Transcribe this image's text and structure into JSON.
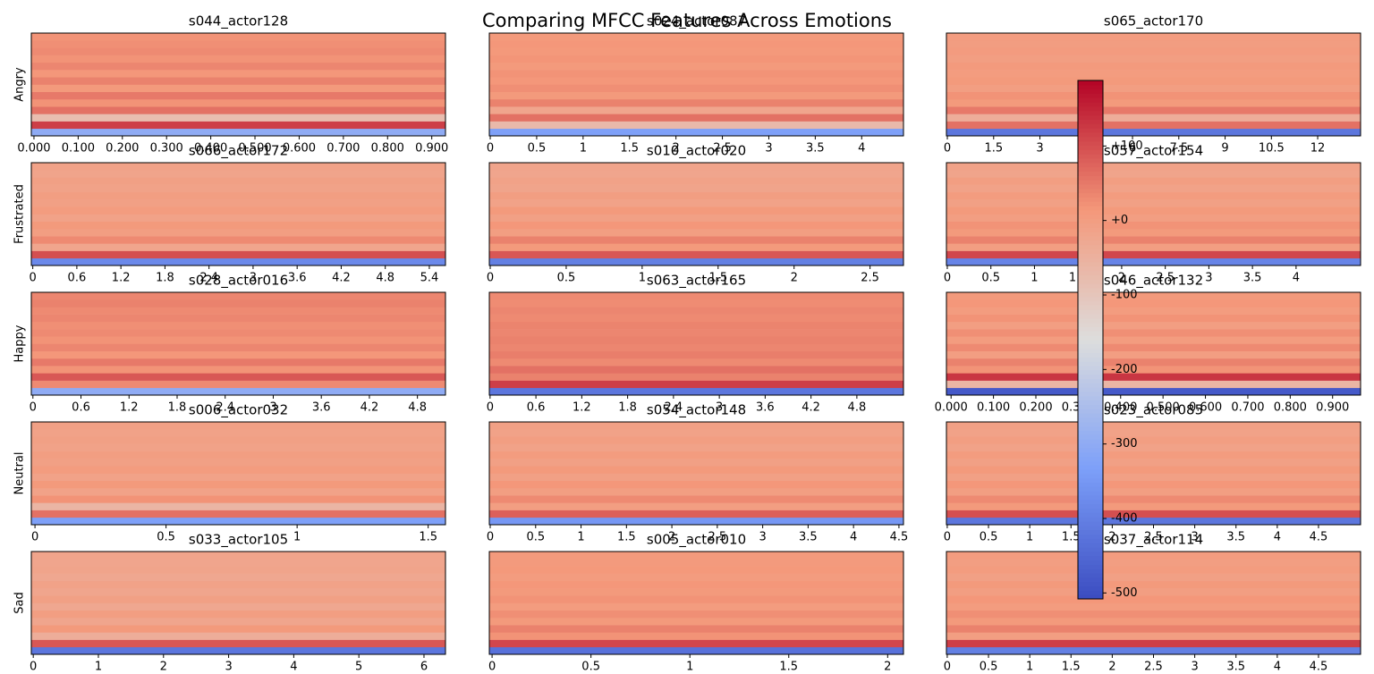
{
  "title": "Comparing MFCC Features Across Emotions",
  "row_labels": [
    "Angry",
    "Frustrated",
    "Happy",
    "Neutral",
    "Sad"
  ],
  "cmap": "coolwarm",
  "colorbar": {
    "lim": [
      -508,
      188
    ],
    "ticks": [
      {
        "value": 100,
        "label": "+100"
      },
      {
        "value": 0,
        "label": "+0"
      },
      -100,
      -200,
      -300,
      -400,
      -500
    ]
  },
  "chart_data": [
    {
      "type": "heatmap",
      "title": "s044_actor128",
      "xlim": [
        -0.006,
        0.931
      ],
      "xticks": [
        {
          "value": 0,
          "label": "0.000"
        },
        {
          "value": 0.1,
          "label": "0.100"
        },
        {
          "value": 0.2,
          "label": "0.200"
        },
        {
          "value": 0.3,
          "label": "0.300"
        },
        {
          "value": 0.4,
          "label": "0.400"
        },
        {
          "value": 0.5,
          "label": "0.500"
        },
        {
          "value": 0.6,
          "label": "0.600"
        },
        {
          "value": 0.7,
          "label": "0.700"
        },
        {
          "value": 0.8,
          "label": "0.800"
        },
        {
          "value": 0.9,
          "label": "0.900"
        }
      ],
      "values": [
        -300,
        120,
        -80,
        60,
        20,
        50,
        10,
        40,
        15,
        35,
        20,
        30,
        25,
        20
      ]
    },
    {
      "type": "heatmap",
      "title": "s024_actor087",
      "xlim": [
        -0.01,
        4.45
      ],
      "xticks": [
        0,
        0.5,
        1,
        1.5,
        2,
        2.5,
        3,
        3.5,
        4
      ],
      "values": [
        -330,
        -70,
        60,
        -20,
        40,
        10,
        25,
        15,
        20,
        10,
        18,
        12,
        15,
        10
      ]
    },
    {
      "type": "heatmap",
      "title": "s065_actor170",
      "xlim": [
        -0.03,
        13.39
      ],
      "xticks": [
        0,
        1.5,
        3,
        4.5,
        6,
        7.5,
        9,
        10.5,
        12
      ],
      "values": [
        -420,
        60,
        -40,
        50,
        10,
        20,
        0,
        10,
        5,
        8,
        0,
        6,
        2,
        4
      ]
    },
    {
      "type": "heatmap",
      "title": "s066_actor172",
      "xlim": [
        -0.02,
        5.62
      ],
      "xticks": [
        0,
        0.6,
        1.2,
        1.8,
        2.4,
        3,
        3.6,
        4.2,
        4.8,
        5.4
      ],
      "values": [
        -380,
        100,
        -20,
        30,
        0,
        10,
        -10,
        5,
        -5,
        0,
        -10,
        -5,
        -15,
        -10
      ]
    },
    {
      "type": "heatmap",
      "title": "s010_actor020",
      "xlim": [
        -0.006,
        2.72
      ],
      "xticks": [
        0,
        0.5,
        1,
        1.5,
        2,
        2.5
      ],
      "values": [
        -400,
        90,
        10,
        40,
        0,
        15,
        -5,
        10,
        -10,
        0,
        -15,
        -10,
        -20,
        -15
      ]
    },
    {
      "type": "heatmap",
      "title": "s057_actor154",
      "xlim": [
        -0.01,
        4.74
      ],
      "xticks": [
        0,
        0.5,
        1,
        1.5,
        2,
        2.5,
        3,
        3.5,
        4
      ],
      "values": [
        -390,
        110,
        0,
        40,
        10,
        20,
        0,
        10,
        -5,
        5,
        -10,
        0,
        -15,
        -10
      ]
    },
    {
      "type": "heatmap",
      "title": "s028_actor016",
      "xlim": [
        -0.02,
        5.15
      ],
      "xticks": [
        0,
        0.6,
        1.2,
        1.8,
        2.4,
        3,
        3.6,
        4.2,
        4.8
      ],
      "values": [
        -300,
        30,
        90,
        20,
        50,
        15,
        35,
        20,
        30,
        25,
        35,
        30,
        40,
        35
      ]
    },
    {
      "type": "heatmap",
      "title": "s063_actor165",
      "xlim": [
        -0.01,
        5.41
      ],
      "xticks": [
        0,
        0.6,
        1.2,
        1.8,
        2.4,
        3,
        3.6,
        4.2,
        4.8
      ],
      "values": [
        -420,
        120,
        40,
        60,
        30,
        45,
        35,
        40,
        35,
        38,
        30,
        35,
        28,
        30
      ]
    },
    {
      "type": "heatmap",
      "title": "s046_actor132",
      "xlim": [
        -0.011,
        0.966
      ],
      "xticks": [
        {
          "value": 0,
          "label": "0.000"
        },
        {
          "value": 0.1,
          "label": "0.100"
        },
        {
          "value": 0.2,
          "label": "0.200"
        },
        {
          "value": 0.3,
          "label": "0.300"
        },
        {
          "value": 0.4,
          "label": "0.400"
        },
        {
          "value": 0.5,
          "label": "0.500"
        },
        {
          "value": 0.6,
          "label": "0.600"
        },
        {
          "value": 0.7,
          "label": "0.700"
        },
        {
          "value": 0.8,
          "label": "0.800"
        },
        {
          "value": 0.9,
          "label": "0.900"
        }
      ],
      "values": [
        -480,
        -60,
        130,
        20,
        40,
        0,
        30,
        5,
        25,
        0,
        20,
        5,
        15,
        10
      ]
    },
    {
      "type": "heatmap",
      "title": "s006_actor032",
      "xlim": [
        -0.014,
        1.566
      ],
      "xticks": [
        0,
        0.5,
        1,
        1.5
      ],
      "values": [
        -330,
        60,
        -60,
        20,
        -10,
        10,
        -10,
        5,
        -5,
        0,
        -10,
        -5,
        -10,
        -5
      ]
    },
    {
      "type": "heatmap",
      "title": "s054_actor148",
      "xlim": [
        -0.01,
        4.55
      ],
      "xticks": [
        0,
        0.5,
        1,
        1.5,
        2,
        2.5,
        3,
        3.5,
        4,
        4.5
      ],
      "values": [
        -350,
        80,
        0,
        30,
        0,
        15,
        -5,
        10,
        -5,
        5,
        -10,
        0,
        -10,
        -5
      ]
    },
    {
      "type": "heatmap",
      "title": "s023_actor085",
      "xlim": [
        -0.01,
        5.01
      ],
      "xticks": [
        0,
        0.5,
        1,
        1.5,
        2,
        2.5,
        3,
        3.5,
        4,
        4.5
      ],
      "values": [
        -420,
        100,
        10,
        30,
        0,
        15,
        -5,
        10,
        -5,
        5,
        -10,
        0,
        -10,
        -5
      ]
    },
    {
      "type": "heatmap",
      "title": "s033_actor105",
      "xlim": [
        -0.03,
        6.33
      ],
      "xticks": [
        0,
        1,
        2,
        3,
        4,
        5,
        6
      ],
      "values": [
        -420,
        90,
        -40,
        10,
        -20,
        0,
        -25,
        -5,
        -20,
        -10,
        -25,
        -15,
        -20,
        -15
      ]
    },
    {
      "type": "heatmap",
      "title": "s005_actor010",
      "xlim": [
        -0.014,
        2.08
      ],
      "xticks": [
        0,
        0.5,
        1,
        1.5,
        2
      ],
      "values": [
        -430,
        110,
        20,
        40,
        10,
        25,
        5,
        20,
        10,
        15,
        5,
        12,
        8,
        10
      ]
    },
    {
      "type": "heatmap",
      "title": "s037_actor114",
      "xlim": [
        -0.01,
        5.01
      ],
      "xticks": [
        0,
        0.5,
        1,
        1.5,
        2,
        2.5,
        3,
        3.5,
        4,
        4.5
      ],
      "values": [
        -400,
        120,
        0,
        40,
        10,
        25,
        5,
        15,
        0,
        10,
        -5,
        5,
        0,
        5
      ]
    }
  ]
}
